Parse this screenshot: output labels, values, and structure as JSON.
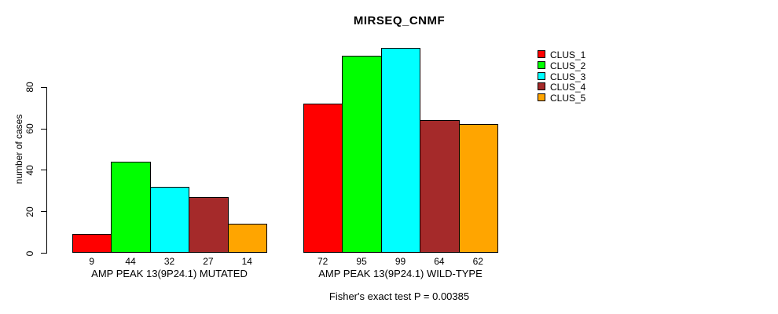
{
  "chart_data": {
    "type": "bar",
    "title": "MIRSEQ_CNMF",
    "ylabel": "number of cases",
    "ylim": [
      0,
      80
    ],
    "yticks": [
      0,
      20,
      40,
      60,
      80
    ],
    "grid": false,
    "legend_position": "right",
    "legend": [
      {
        "label": "CLUS_1",
        "color": "#FF0000"
      },
      {
        "label": "CLUS_2",
        "color": "#00FF00"
      },
      {
        "label": "CLUS_3",
        "color": "#00FFFF"
      },
      {
        "label": "CLUS_4",
        "color": "#A52A2A"
      },
      {
        "label": "CLUS_5",
        "color": "#FFA500"
      }
    ],
    "groups": [
      {
        "label": "AMP PEAK 13(9P24.1) MUTATED",
        "values": [
          9,
          44,
          32,
          27,
          14
        ]
      },
      {
        "label": "AMP PEAK 13(9P24.1) WILD-TYPE",
        "values": [
          72,
          95,
          99,
          64,
          62
        ]
      }
    ],
    "annotation": "Fisher's exact test P = 0.00385"
  }
}
